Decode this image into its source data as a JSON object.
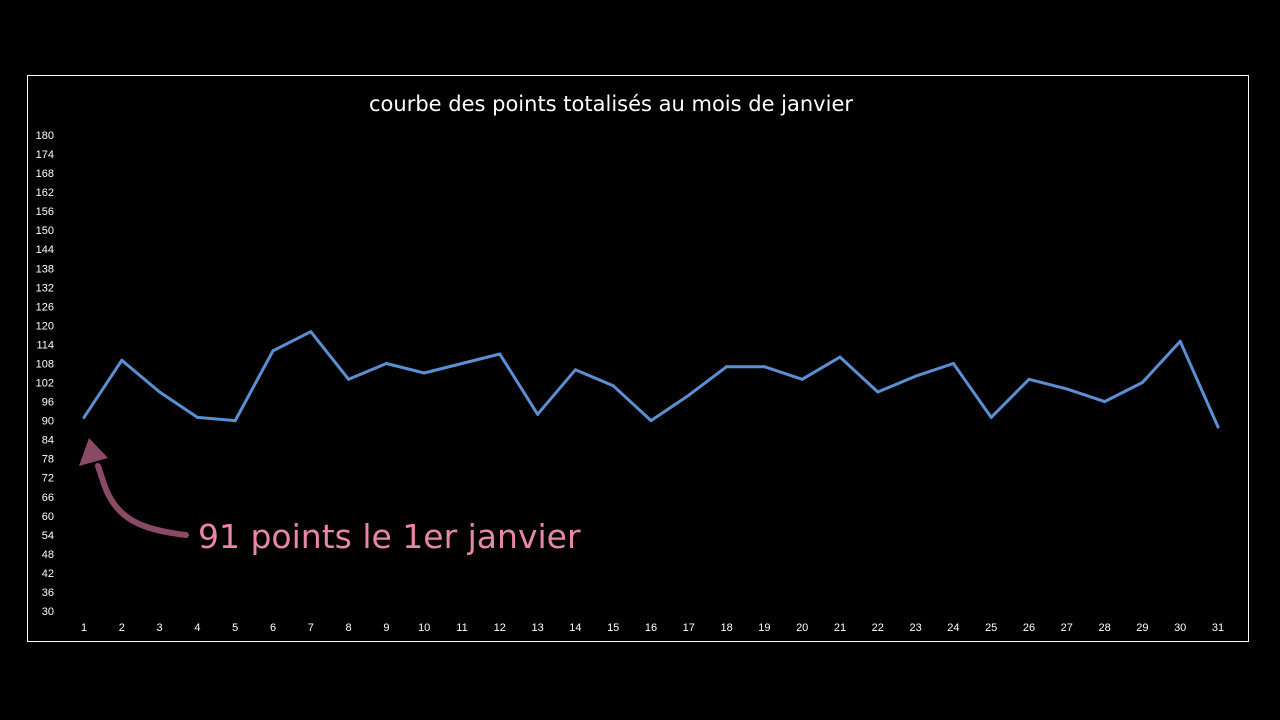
{
  "colors": {
    "background": "#000000",
    "frame": "#ffffff",
    "text": "#ffffff",
    "series": "#5b8fd1",
    "annotation_text": "#e687a8",
    "annotation_arrow": "#8a4a66"
  },
  "chart_data": {
    "type": "line",
    "title": "courbe des points totalisés au mois de janvier",
    "xlabel": "",
    "ylabel": "",
    "x": [
      1,
      2,
      3,
      4,
      5,
      6,
      7,
      8,
      9,
      10,
      11,
      12,
      13,
      14,
      15,
      16,
      17,
      18,
      19,
      20,
      21,
      22,
      23,
      24,
      25,
      26,
      27,
      28,
      29,
      30,
      31
    ],
    "ylim": [
      30,
      180
    ],
    "y_ticks": [
      30,
      36,
      42,
      48,
      54,
      60,
      66,
      72,
      78,
      84,
      90,
      96,
      102,
      108,
      114,
      120,
      126,
      132,
      138,
      144,
      150,
      156,
      162,
      168,
      174,
      180
    ],
    "grid": false,
    "legend": "none",
    "series": [
      {
        "values": [
          91,
          109,
          99,
          91,
          90,
          112,
          118,
          103,
          108,
          105,
          108,
          111,
          92,
          106,
          101,
          90,
          98,
          107,
          107,
          103,
          110,
          99,
          104,
          108,
          91,
          103,
          100,
          96,
          102,
          115,
          88
        ]
      }
    ],
    "annotations": [
      {
        "text": "91 points le 1er janvier",
        "points_to_x": 1,
        "points_to_y": 91
      }
    ]
  }
}
